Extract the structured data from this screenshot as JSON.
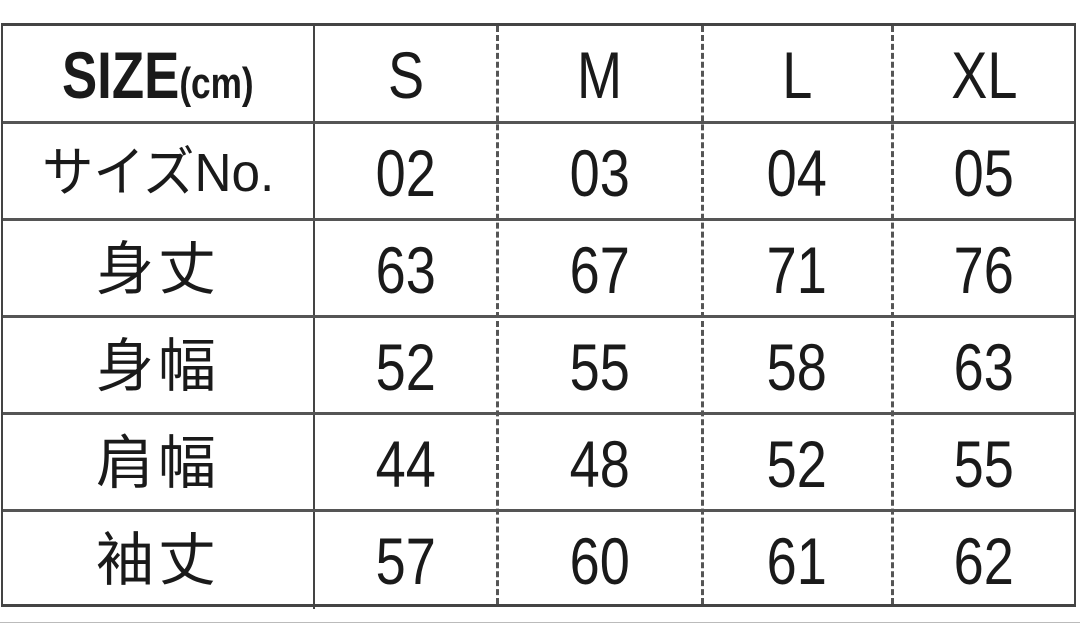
{
  "table": {
    "header": {
      "label_main": "SIZE",
      "label_unit": "(cm)",
      "columns": [
        "S",
        "M",
        "L",
        "XL"
      ]
    },
    "rows": [
      {
        "label": "サイズNo.",
        "values": [
          "02",
          "03",
          "04",
          "05"
        ]
      },
      {
        "label": "身丈",
        "values": [
          "63",
          "67",
          "71",
          "76"
        ]
      },
      {
        "label": "身幅",
        "values": [
          "52",
          "55",
          "58",
          "63"
        ]
      },
      {
        "label": "肩幅",
        "values": [
          "44",
          "48",
          "52",
          "55"
        ]
      },
      {
        "label": "袖丈",
        "values": [
          "57",
          "60",
          "61",
          "62"
        ]
      }
    ]
  }
}
